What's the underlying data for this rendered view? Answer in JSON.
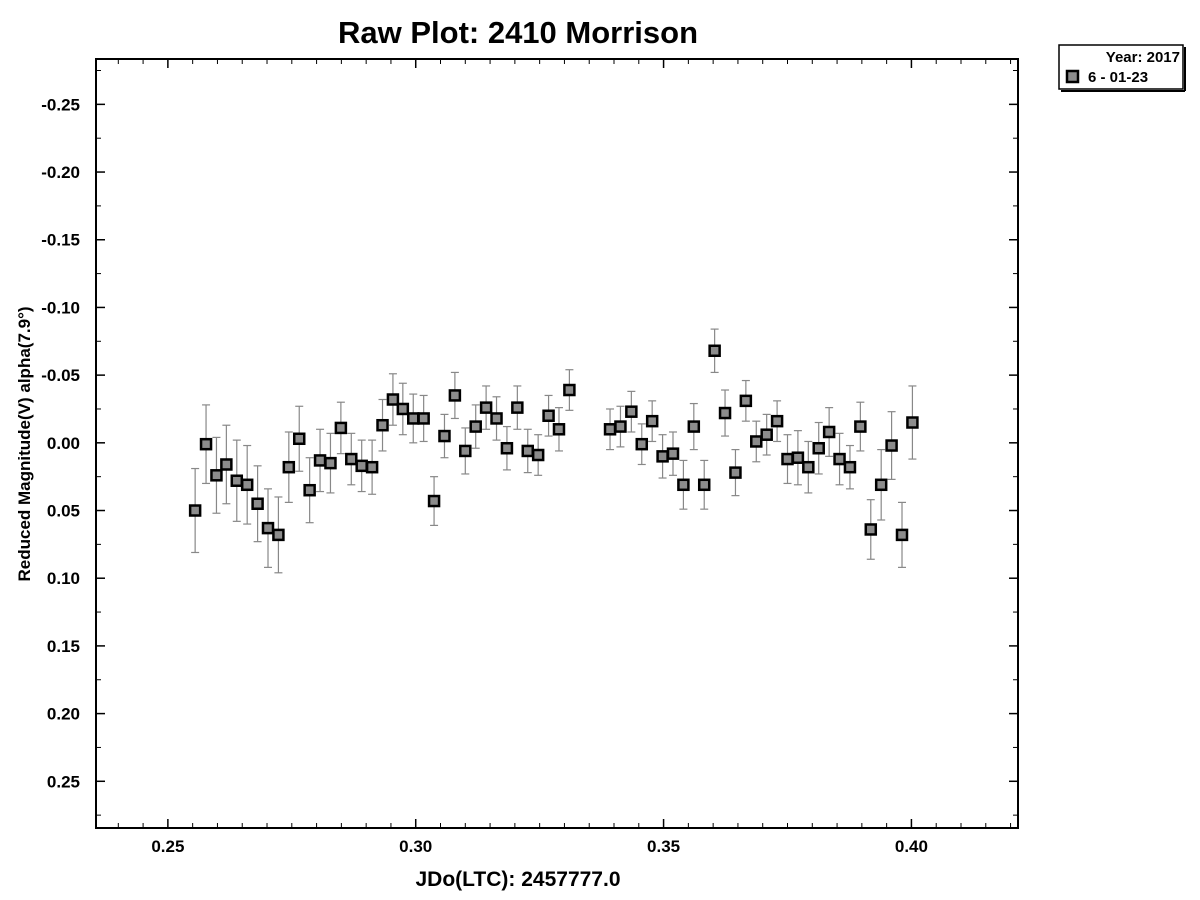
{
  "chart_data": {
    "type": "scatter",
    "title": "Raw Plot: 2410 Morrison",
    "xlabel": "JDo(LTC): 2457777.0",
    "ylabel": "Reduced Magnitude(V) alpha(7.9°)",
    "xlim": [
      0.2355,
      0.4215
    ],
    "ylim": [
      -0.2835,
      0.2845
    ],
    "y_inverted": true,
    "x_ticks": [
      "0.25",
      "0.30",
      "0.35",
      "0.40"
    ],
    "x_tick_values": [
      0.25,
      0.3,
      0.35,
      0.4
    ],
    "y_ticks": [
      "-0.25",
      "-0.20",
      "-0.15",
      "-0.10",
      "-0.05",
      "0.00",
      "0.05",
      "0.10",
      "0.15",
      "0.20",
      "0.25"
    ],
    "y_tick_values": [
      -0.25,
      -0.2,
      -0.15,
      -0.1,
      -0.05,
      0.0,
      0.05,
      0.1,
      0.15,
      0.2,
      0.25
    ],
    "grid": false,
    "legend": {
      "placement": "top-right outside",
      "header": "Year: 2017",
      "entries": [
        "6 - 01-23"
      ]
    },
    "marker_colors": {
      "fill": "#8c8c8c",
      "edge": "#000000",
      "errorbar": "#888888"
    },
    "series": [
      {
        "name": "6 - 01-23",
        "x": [
          0.2555,
          0.2577,
          0.2598,
          0.2618,
          0.2639,
          0.266,
          0.2681,
          0.2702,
          0.2723,
          0.2744,
          0.2765,
          0.2786,
          0.2807,
          0.2828,
          0.2849,
          0.287,
          0.2891,
          0.2912,
          0.2933,
          0.2954,
          0.2974,
          0.2995,
          0.3016,
          0.3037,
          0.3058,
          0.3079,
          0.31,
          0.3121,
          0.3142,
          0.3163,
          0.3184,
          0.3205,
          0.3226,
          0.3247,
          0.3268,
          0.3289,
          0.331,
          0.3392,
          0.3413,
          0.3435,
          0.3456,
          0.3477,
          0.3498,
          0.3519,
          0.354,
          0.3561,
          0.3582,
          0.3603,
          0.3624,
          0.3645,
          0.3666,
          0.3687,
          0.3708,
          0.3729,
          0.375,
          0.3771,
          0.3792,
          0.3813,
          0.3834,
          0.3855,
          0.3876,
          0.3897,
          0.3918,
          0.3939,
          0.396,
          0.3981,
          0.4002
        ],
        "y": [
          0.05,
          0.001,
          0.024,
          0.016,
          0.028,
          0.031,
          0.045,
          0.063,
          0.068,
          0.018,
          -0.003,
          0.035,
          0.013,
          0.015,
          -0.011,
          0.012,
          0.017,
          0.018,
          -0.013,
          -0.032,
          -0.025,
          -0.018,
          -0.018,
          0.043,
          -0.005,
          -0.035,
          0.006,
          -0.012,
          -0.026,
          -0.018,
          0.004,
          -0.026,
          0.006,
          0.009,
          -0.02,
          -0.01,
          -0.039,
          -0.01,
          -0.012,
          -0.023,
          0.001,
          -0.016,
          0.01,
          0.008,
          0.031,
          -0.012,
          0.031,
          -0.068,
          -0.022,
          0.022,
          -0.031,
          -0.001,
          -0.006,
          -0.016,
          0.012,
          0.011,
          0.018,
          0.004,
          -0.008,
          0.012,
          0.018,
          -0.012,
          0.064,
          0.031,
          0.002,
          0.068,
          -0.015
        ],
        "err": [
          0.031,
          0.029,
          0.028,
          0.029,
          0.03,
          0.029,
          0.028,
          0.029,
          0.028,
          0.026,
          0.024,
          0.024,
          0.023,
          0.022,
          0.019,
          0.019,
          0.019,
          0.02,
          0.019,
          0.019,
          0.019,
          0.018,
          0.017,
          0.018,
          0.016,
          0.017,
          0.017,
          0.016,
          0.016,
          0.016,
          0.016,
          0.016,
          0.016,
          0.015,
          0.015,
          0.016,
          0.015,
          0.015,
          0.015,
          0.015,
          0.015,
          0.015,
          0.016,
          0.016,
          0.018,
          0.017,
          0.018,
          0.016,
          0.017,
          0.017,
          0.015,
          0.015,
          0.015,
          0.015,
          0.018,
          0.02,
          0.019,
          0.019,
          0.018,
          0.019,
          0.016,
          0.018,
          0.022,
          0.026,
          0.025,
          0.024,
          0.027
        ]
      }
    ]
  }
}
